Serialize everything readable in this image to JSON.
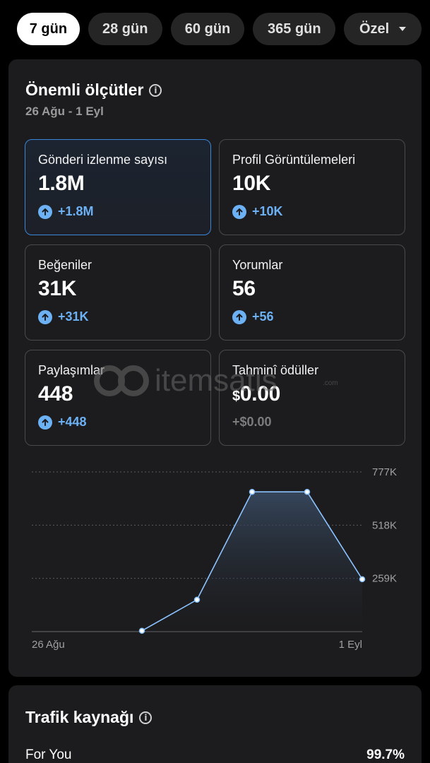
{
  "tabs": [
    {
      "label": "7 gün",
      "active": true
    },
    {
      "label": "28 gün",
      "active": false
    },
    {
      "label": "60 gün",
      "active": false
    },
    {
      "label": "365 gün",
      "active": false
    },
    {
      "label": "Özel",
      "active": false
    }
  ],
  "metrics_card": {
    "title": "Önemli ölçütler",
    "date_range": "26 Ağu - 1 Eyl",
    "tiles": [
      {
        "label": "Gönderi izlenme sayısı",
        "value": "1.8M",
        "change": "+1.8M",
        "selected": true
      },
      {
        "label": "Profil Görüntülemeleri",
        "value": "10K",
        "change": "+10K"
      },
      {
        "label": "Beğeniler",
        "value": "31K",
        "change": "+31K"
      },
      {
        "label": "Yorumlar",
        "value": "56",
        "change": "+56"
      },
      {
        "label": "Paylaşımlar",
        "value": "448",
        "change": "+448"
      },
      {
        "label": "Tahminî ödüller",
        "currency": "$",
        "value": "0.00",
        "change": "+$0.00"
      }
    ]
  },
  "chart_data": {
    "type": "area",
    "x": [
      "26 Ağu",
      "27 Ağu",
      "28 Ağu",
      "29 Ağu",
      "30 Ağu",
      "31 Ağu",
      "1 Eyl"
    ],
    "values": [
      0,
      0,
      4000,
      155000,
      680000,
      680000,
      255000
    ],
    "ylim": [
      0,
      777000
    ],
    "yticks": [
      "777K",
      "518K",
      "259K"
    ],
    "xtick_labels": [
      "26 Ağu",
      "1 Eyl"
    ],
    "grid": true
  },
  "watermark": {
    "text": "itemsatis",
    "suffix": ".com"
  },
  "traffic_card": {
    "title": "Trafik kaynağı",
    "rows": [
      {
        "label": "For You",
        "value": "99.7%"
      }
    ]
  },
  "colors": {
    "accent": "#6db1f5",
    "selected_border": "#3a86d8",
    "card_bg": "#1c1c1e"
  }
}
